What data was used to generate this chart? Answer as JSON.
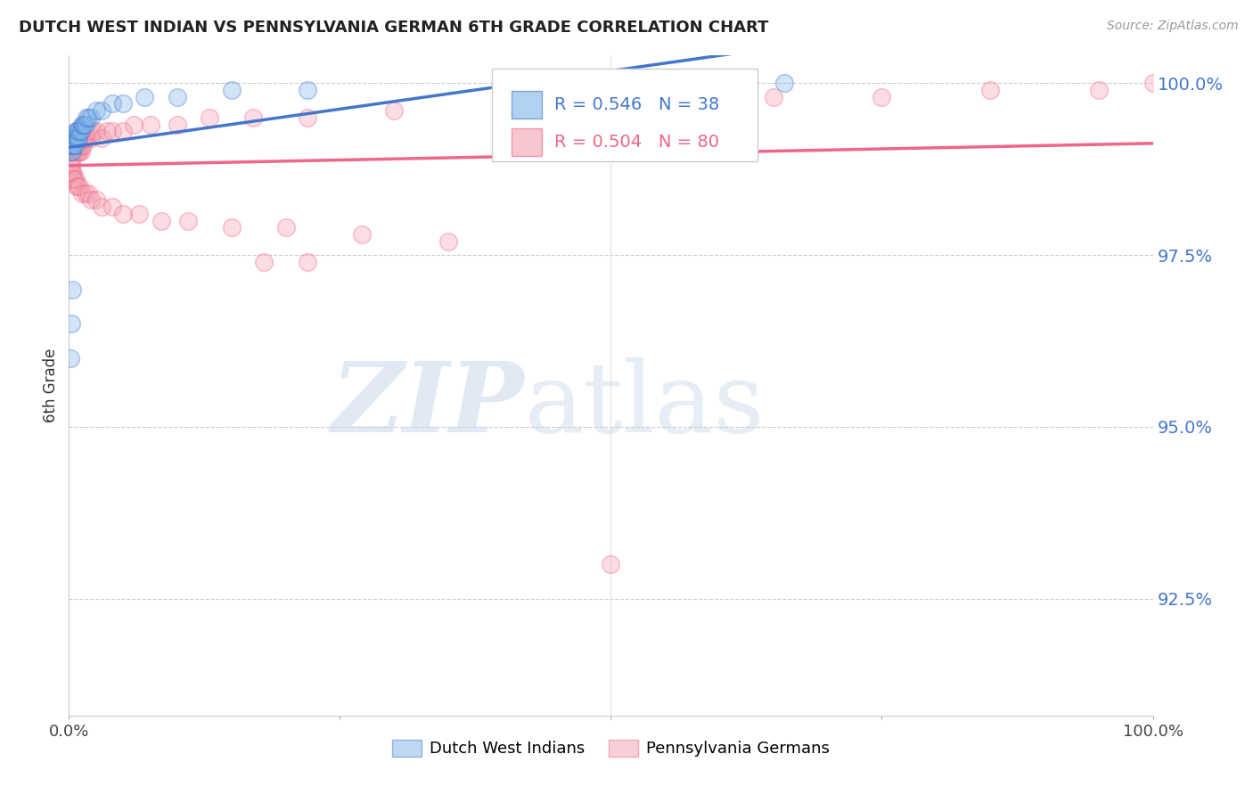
{
  "title": "DUTCH WEST INDIAN VS PENNSYLVANIA GERMAN 6TH GRADE CORRELATION CHART",
  "source": "Source: ZipAtlas.com",
  "ylabel": "6th Grade",
  "xmin": 0.0,
  "xmax": 1.0,
  "ymin": 0.908,
  "ymax": 1.004,
  "yticks": [
    0.925,
    0.95,
    0.975,
    1.0
  ],
  "ytick_labels": [
    "92.5%",
    "95.0%",
    "97.5%",
    "100.0%"
  ],
  "blue_R": 0.546,
  "blue_N": 38,
  "pink_R": 0.504,
  "pink_N": 80,
  "legend_label_blue": "Dutch West Indians",
  "legend_label_pink": "Pennsylvania Germans",
  "blue_color": "#7EB3E8",
  "pink_color": "#F4A0B0",
  "blue_line_color": "#4477CC",
  "pink_line_color": "#EE6688",
  "blue_points_x": [
    0.001,
    0.002,
    0.002,
    0.003,
    0.003,
    0.003,
    0.004,
    0.004,
    0.005,
    0.005,
    0.006,
    0.006,
    0.007,
    0.007,
    0.008,
    0.008,
    0.009,
    0.01,
    0.011,
    0.012,
    0.013,
    0.014,
    0.015,
    0.016,
    0.018,
    0.02,
    0.025,
    0.03,
    0.04,
    0.05,
    0.07,
    0.1,
    0.15,
    0.22,
    0.001,
    0.002,
    0.003,
    0.66
  ],
  "blue_points_y": [
    0.99,
    0.991,
    0.992,
    0.99,
    0.991,
    0.992,
    0.991,
    0.992,
    0.991,
    0.992,
    0.991,
    0.993,
    0.992,
    0.993,
    0.992,
    0.993,
    0.992,
    0.993,
    0.993,
    0.994,
    0.994,
    0.994,
    0.994,
    0.995,
    0.995,
    0.995,
    0.996,
    0.996,
    0.997,
    0.997,
    0.998,
    0.998,
    0.999,
    0.999,
    0.96,
    0.965,
    0.97,
    1.0
  ],
  "pink_points_x": [
    0.001,
    0.002,
    0.002,
    0.003,
    0.003,
    0.003,
    0.003,
    0.004,
    0.004,
    0.004,
    0.005,
    0.005,
    0.005,
    0.006,
    0.006,
    0.007,
    0.007,
    0.008,
    0.008,
    0.009,
    0.009,
    0.01,
    0.01,
    0.011,
    0.012,
    0.013,
    0.014,
    0.015,
    0.016,
    0.018,
    0.02,
    0.022,
    0.025,
    0.03,
    0.035,
    0.04,
    0.05,
    0.06,
    0.075,
    0.1,
    0.13,
    0.17,
    0.22,
    0.3,
    0.4,
    0.55,
    0.65,
    0.75,
    0.85,
    0.95,
    0.001,
    0.002,
    0.002,
    0.003,
    0.004,
    0.004,
    0.005,
    0.006,
    0.007,
    0.008,
    0.01,
    0.012,
    0.015,
    0.018,
    0.02,
    0.025,
    0.03,
    0.04,
    0.05,
    0.065,
    0.085,
    0.11,
    0.15,
    0.2,
    0.27,
    0.35,
    0.18,
    0.22,
    0.5,
    1.0
  ],
  "pink_points_y": [
    0.99,
    0.99,
    0.991,
    0.989,
    0.99,
    0.991,
    0.992,
    0.99,
    0.991,
    0.992,
    0.99,
    0.991,
    0.992,
    0.99,
    0.991,
    0.99,
    0.991,
    0.99,
    0.991,
    0.99,
    0.991,
    0.99,
    0.991,
    0.99,
    0.991,
    0.991,
    0.992,
    0.992,
    0.992,
    0.993,
    0.992,
    0.993,
    0.993,
    0.992,
    0.993,
    0.993,
    0.993,
    0.994,
    0.994,
    0.994,
    0.995,
    0.995,
    0.995,
    0.996,
    0.997,
    0.997,
    0.998,
    0.998,
    0.999,
    0.999,
    0.988,
    0.988,
    0.987,
    0.987,
    0.987,
    0.986,
    0.986,
    0.986,
    0.985,
    0.985,
    0.985,
    0.984,
    0.984,
    0.984,
    0.983,
    0.983,
    0.982,
    0.982,
    0.981,
    0.981,
    0.98,
    0.98,
    0.979,
    0.979,
    0.978,
    0.977,
    0.974,
    0.974,
    0.93,
    1.0
  ]
}
